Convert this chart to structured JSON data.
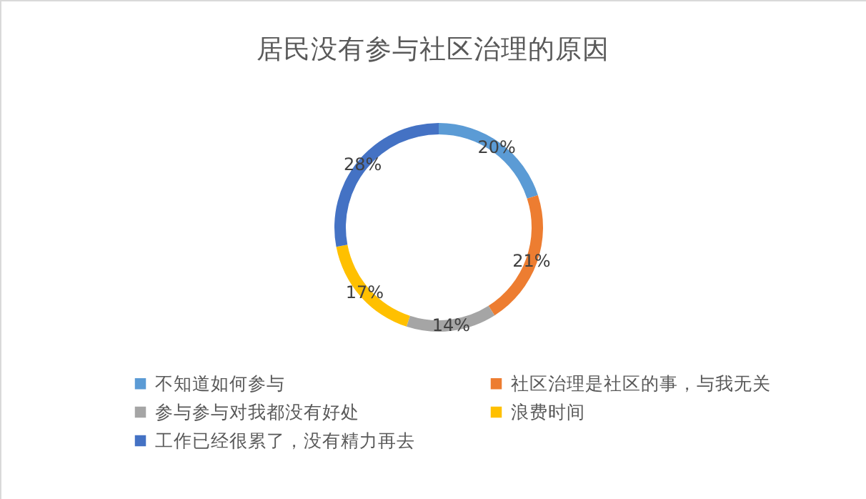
{
  "chart_data": {
    "type": "donut",
    "title": "居民没有参与社区治理的原因",
    "categories": [
      "不知道如何参与",
      "社区治理是社区的事，与我无关",
      "参与参与对我都没有好处",
      "浪费时间",
      "工作已经很累了，没有精力再去"
    ],
    "values": [
      20,
      21,
      14,
      17,
      28
    ],
    "value_labels": [
      "20%",
      "21%",
      "14%",
      "17%",
      "28%"
    ],
    "colors": [
      "#5b9bd5",
      "#ed7d31",
      "#a5a5a5",
      "#ffc000",
      "#4472c4"
    ],
    "legend": "bottom"
  }
}
